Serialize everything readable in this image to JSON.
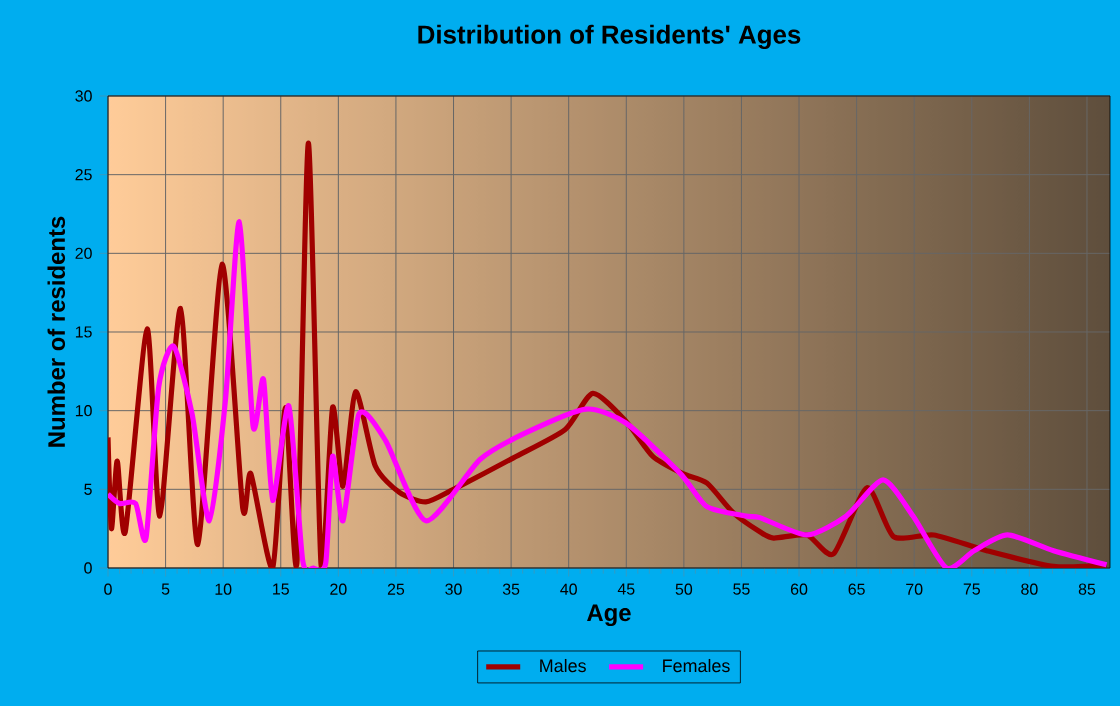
{
  "chart_data": {
    "type": "line",
    "title": "Distribution of Residents' Ages",
    "xlabel": "Age",
    "ylabel": "Number of residents",
    "xlim": [
      0,
      87
    ],
    "ylim": [
      0,
      30
    ],
    "xticks": [
      0,
      5,
      10,
      15,
      20,
      25,
      30,
      35,
      40,
      45,
      50,
      55,
      60,
      65,
      70,
      75,
      80,
      85
    ],
    "yticks": [
      0,
      5,
      10,
      15,
      20,
      25,
      30
    ],
    "grid": true,
    "legend": "bottom",
    "marker": "none",
    "line_style": "solid",
    "series": [
      {
        "name": "Males",
        "color": "#a00000",
        "x": [
          0,
          0.3,
          0.8,
          1.5,
          3.4,
          4.5,
          6.3,
          7.8,
          9.9,
          11.7,
          12.4,
          14.3,
          15.4,
          16.4,
          17.4,
          18.5,
          19.5,
          20.4,
          21.5,
          23.2,
          25.3,
          27.6,
          30,
          35.2,
          39.7,
          42.1,
          45,
          47.3,
          49.9,
          52,
          54.3,
          56.6,
          57.8,
          60.7,
          63,
          65.9,
          68.2,
          71.7,
          76.3,
          82.1,
          86.7
        ],
        "values": [
          8.3,
          2.5,
          6.8,
          2.3,
          15.2,
          3.3,
          16.5,
          1.5,
          19.3,
          3.8,
          6,
          0,
          10.2,
          0.3,
          27,
          0.2,
          10.2,
          5.2,
          11.2,
          6.5,
          4.8,
          4.2,
          5,
          7,
          8.8,
          11.1,
          9.3,
          7.1,
          6,
          5.4,
          3.5,
          2.3,
          1.9,
          2.1,
          0.9,
          5.1,
          2,
          2.1,
          1.1,
          0.1,
          0.2
        ]
      },
      {
        "name": "Females",
        "color": "#ff00ff",
        "x": [
          0,
          1,
          2.4,
          3.3,
          4.4,
          5.7,
          7.3,
          8.8,
          10.2,
          11.4,
          12.6,
          13.5,
          14.3,
          15.7,
          16.9,
          17.8,
          18.9,
          19.5,
          20.4,
          21.8,
          24.1,
          27.6,
          32.3,
          36.3,
          41.5,
          45,
          49.7,
          52,
          55.4,
          56.6,
          60.7,
          64.1,
          67.3,
          69.9,
          72.8,
          75.2,
          78.1,
          82.1,
          86.7
        ],
        "values": [
          4.7,
          4.1,
          4.1,
          1.9,
          11.5,
          14.1,
          9.8,
          3,
          10.7,
          22,
          9,
          12,
          4.3,
          10.3,
          0.5,
          0,
          0.3,
          7.1,
          3,
          9.8,
          8.1,
          3,
          6.9,
          8.6,
          10.1,
          9.2,
          6,
          3.9,
          3.3,
          3.2,
          2.1,
          3.3,
          5.6,
          3.3,
          0,
          1.1,
          2.1,
          1.1,
          0.2
        ]
      }
    ]
  }
}
